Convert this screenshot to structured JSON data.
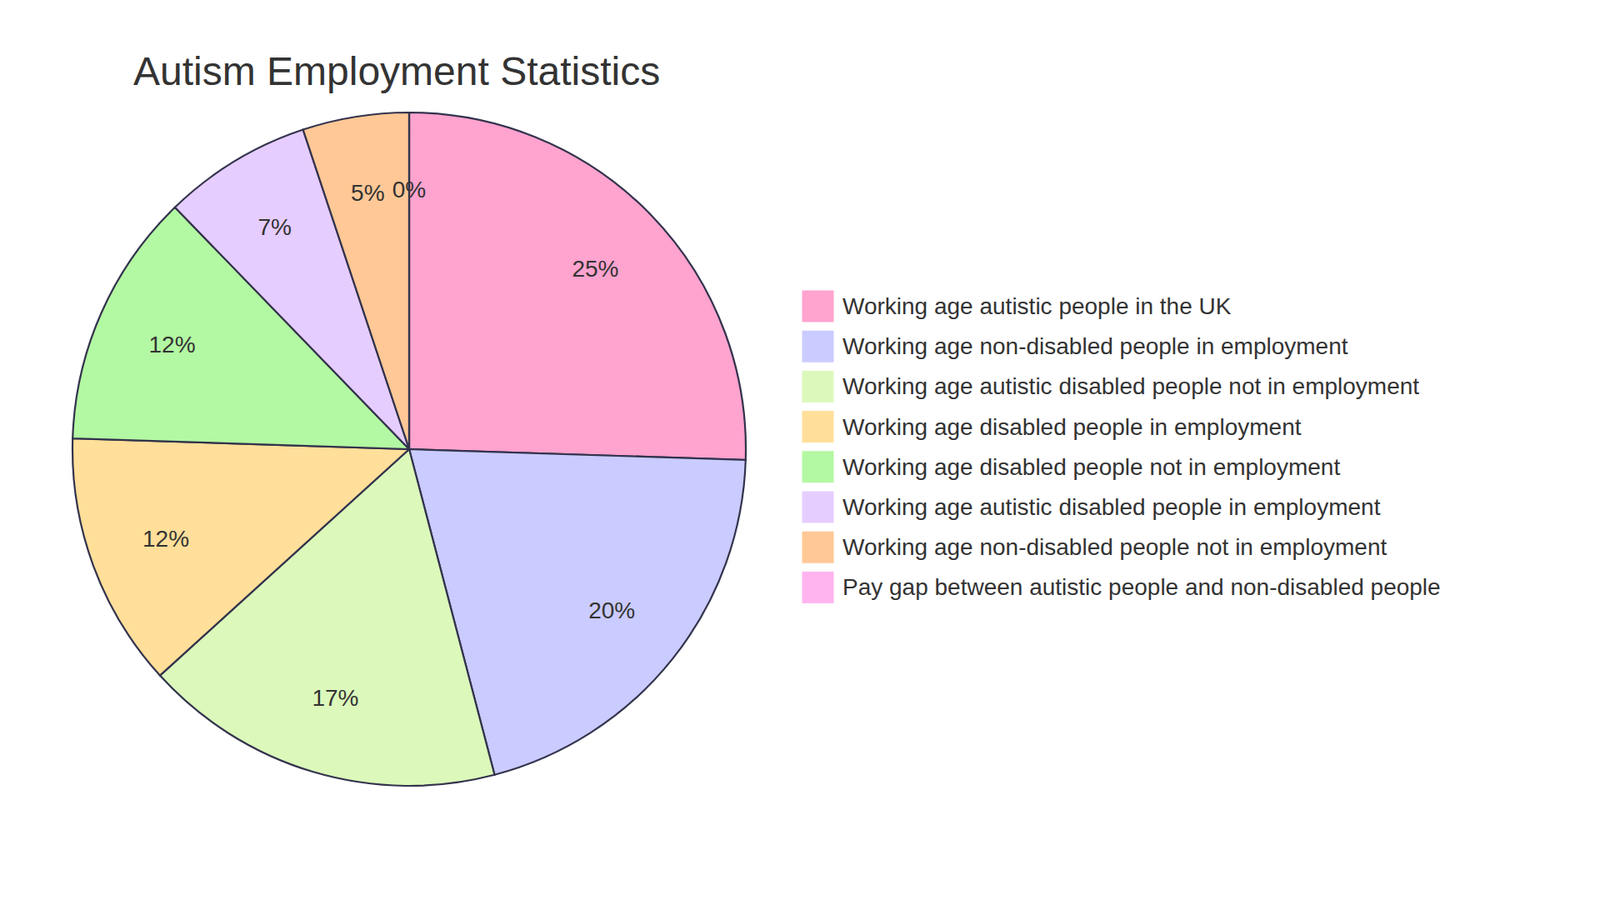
{
  "chart_data": {
    "type": "pie",
    "title": "Autism Employment Statistics",
    "categories": [
      "Working age autistic people in the UK",
      "Working age non-disabled people in employment",
      "Working age autistic disabled people not in employment",
      "Working age disabled people in employment",
      "Working age disabled people not in employment",
      "Working age autistic disabled people in employment",
      "Working age non-disabled people not in employment",
      "Pay gap between autistic people and non-disabled people"
    ],
    "values": [
      25,
      20,
      17,
      12,
      12,
      7,
      5,
      0
    ],
    "value_labels": [
      "25%",
      "20%",
      "17%",
      "12%",
      "12%",
      "7%",
      "5%",
      "0%"
    ],
    "colors": [
      "#ffa3cf",
      "#cacbff",
      "#dcf9bb",
      "#ffdf99",
      "#b3f8a2",
      "#e6cdff",
      "#ffc896",
      "#ffb4f0"
    ],
    "data_labels": true,
    "legend": "right"
  }
}
